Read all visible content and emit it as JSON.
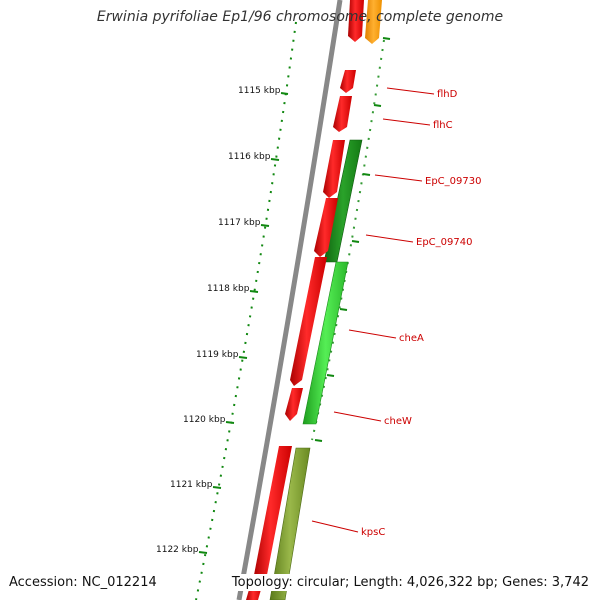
{
  "title": "Erwinia pyrifoliae Ep1/96 chromosome, complete genome",
  "footer": {
    "accession": "Accession: NC_012214",
    "summary": "Topology: circular; Length: 4,026,322 bp; Genes: 3,742"
  },
  "scale_labels": [
    "1115 kbp",
    "1116 kbp",
    "1117 kbp",
    "1118 kbp",
    "1119 kbp",
    "1120 kbp",
    "1121 kbp",
    "1122 kbp"
  ],
  "gene_labels": [
    "flhD",
    "flhC",
    "EpC_09730",
    "EpC_09740",
    "cheA",
    "cheW",
    "kpsC"
  ],
  "colors": {
    "backbone": "#888888",
    "forward_gene": "#ee0000",
    "reverse_gene": "#ffa500",
    "cds_dark_green": "#1f8f1f",
    "cds_light_green": "#33cc33",
    "cds_olive": "#7a9a2a",
    "tick_green": "#118811",
    "label_red": "#cc0000"
  }
}
